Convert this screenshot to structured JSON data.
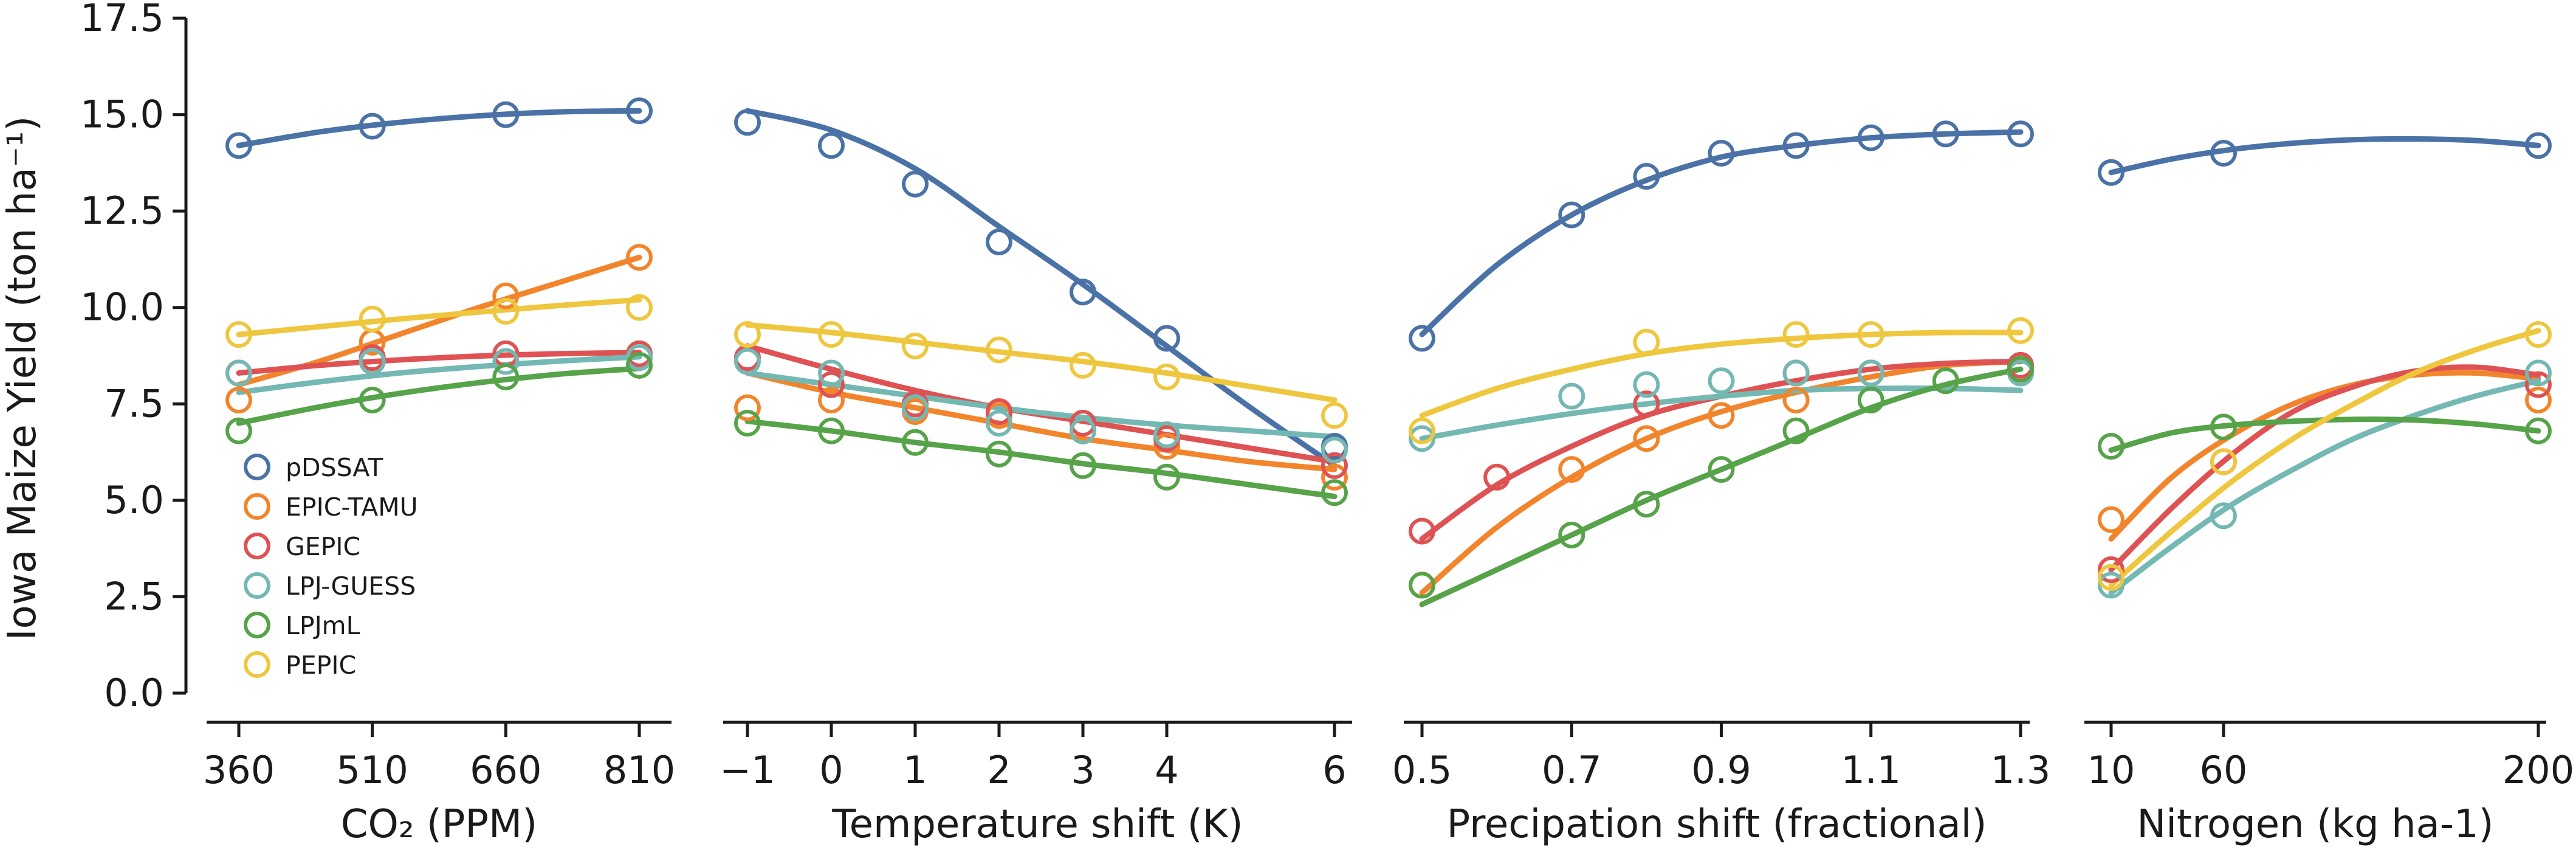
{
  "chart_data": {
    "type": "scatter",
    "ylabel": "Iowa Maize Yield (ton ha⁻¹)",
    "ylim": [
      0,
      17.5
    ],
    "y_ticks": [
      "0.0",
      "2.5",
      "5.0",
      "7.5",
      "10.0",
      "12.5",
      "15.0",
      "17.5"
    ],
    "grid": false,
    "legend_placement": "lower-left of first panel",
    "series": [
      {
        "name": "pDSSAT",
        "color": "#4a72a6"
      },
      {
        "name": "EPIC-TAMU",
        "color": "#f2852b"
      },
      {
        "name": "GEPIC",
        "color": "#df5253"
      },
      {
        "name": "LPJ-GUESS",
        "color": "#74b8b3"
      },
      {
        "name": "LPJmL",
        "color": "#56a349"
      },
      {
        "name": "PEPIC",
        "color": "#efc73f"
      }
    ],
    "panels": [
      {
        "xlabel": "CO₂ (PPM)",
        "xlim": [
          340,
          830
        ],
        "x_ticks": [
          360,
          510,
          660,
          810
        ],
        "x_tick_labels": [
          "360",
          "510",
          "660",
          "810"
        ],
        "x": [
          360,
          510,
          660,
          810
        ],
        "points": {
          "pDSSAT": [
            14.2,
            14.7,
            15.0,
            15.1
          ],
          "EPIC-TAMU": [
            7.6,
            9.1,
            10.3,
            11.3
          ],
          "GEPIC": [
            8.3,
            8.7,
            8.8,
            8.8
          ],
          "LPJ-GUESS": [
            8.3,
            8.6,
            8.6,
            8.7
          ],
          "LPJmL": [
            6.8,
            7.6,
            8.2,
            8.5
          ],
          "PEPIC": [
            9.3,
            9.7,
            9.9,
            10.0
          ]
        },
        "fit_x": [
          360,
          450,
          540,
          630,
          720,
          810
        ],
        "fits": {
          "pDSSAT": [
            14.2,
            14.55,
            14.8,
            14.97,
            15.07,
            15.1
          ],
          "EPIC-TAMU": [
            8.0,
            8.6,
            9.3,
            10.0,
            10.65,
            11.3
          ],
          "GEPIC": [
            8.3,
            8.5,
            8.64,
            8.74,
            8.8,
            8.83
          ],
          "LPJ-GUESS": [
            7.8,
            8.07,
            8.3,
            8.47,
            8.61,
            8.72
          ],
          "LPJmL": [
            7.0,
            7.42,
            7.77,
            8.05,
            8.27,
            8.42
          ],
          "PEPIC": [
            9.3,
            9.5,
            9.7,
            9.88,
            10.05,
            10.2
          ]
        }
      },
      {
        "xlabel": "Temperature shift (K)",
        "xlim": [
          -1.2,
          6.2
        ],
        "x_ticks": [
          -1,
          0,
          1,
          2,
          3,
          4,
          6
        ],
        "x_tick_labels": [
          "−1",
          "0",
          "1",
          "2",
          "3",
          "4",
          "6"
        ],
        "x": [
          -1,
          0,
          1,
          2,
          3,
          4,
          6
        ],
        "points": {
          "pDSSAT": [
            14.8,
            14.2,
            13.2,
            11.7,
            10.4,
            9.2,
            6.4
          ],
          "EPIC-TAMU": [
            7.4,
            7.6,
            7.3,
            7.2,
            6.8,
            6.4,
            5.6
          ],
          "GEPIC": [
            8.7,
            8.0,
            7.5,
            7.3,
            7.0,
            6.6,
            5.9
          ],
          "LPJ-GUESS": [
            8.6,
            8.3,
            7.4,
            7.0,
            6.8,
            6.7,
            6.3
          ],
          "LPJmL": [
            7.0,
            6.8,
            6.5,
            6.2,
            5.9,
            5.6,
            5.2
          ],
          "PEPIC": [
            9.3,
            9.3,
            9.0,
            8.9,
            8.5,
            8.2,
            7.2
          ]
        },
        "fit_x": [
          -1,
          0,
          1,
          2,
          3,
          4,
          5,
          6
        ],
        "fits": {
          "pDSSAT": [
            15.1,
            14.6,
            13.6,
            12.1,
            10.6,
            9.0,
            7.4,
            5.9
          ],
          "EPIC-TAMU": [
            8.3,
            7.8,
            7.4,
            7.0,
            6.6,
            6.3,
            6.0,
            5.8
          ],
          "GEPIC": [
            9.0,
            8.4,
            7.85,
            7.4,
            7.05,
            6.7,
            6.35,
            6.0
          ],
          "LPJ-GUESS": [
            8.3,
            8.0,
            7.7,
            7.4,
            7.15,
            6.95,
            6.8,
            6.65
          ],
          "LPJmL": [
            7.05,
            6.8,
            6.5,
            6.25,
            5.95,
            5.7,
            5.4,
            5.1
          ],
          "PEPIC": [
            9.55,
            9.35,
            9.1,
            8.85,
            8.6,
            8.3,
            7.95,
            7.6
          ]
        }
      },
      {
        "xlabel": "Precipation shift (fractional)",
        "xlim": [
          0.48,
          1.32
        ],
        "x_ticks": [
          0.5,
          0.7,
          0.9,
          1.1,
          1.3
        ],
        "x_tick_labels": [
          "0.5",
          "0.7",
          "0.9",
          "1.1",
          "1.3"
        ],
        "x": [
          0.5,
          0.6,
          0.7,
          0.8,
          0.9,
          1.0,
          1.1,
          1.2,
          1.3
        ],
        "points": {
          "pDSSAT": [
            9.2,
            null,
            12.4,
            13.4,
            14.0,
            14.2,
            14.4,
            14.5,
            14.5
          ],
          "EPIC-TAMU": [
            2.8,
            null,
            5.8,
            6.6,
            7.2,
            7.6,
            8.3,
            null,
            8.4
          ],
          "GEPIC": [
            4.2,
            5.6,
            null,
            7.5,
            null,
            8.3,
            8.3,
            null,
            8.5
          ],
          "LPJ-GUESS": [
            6.6,
            null,
            7.7,
            8.0,
            8.1,
            8.3,
            8.3,
            null,
            8.3
          ],
          "LPJmL": [
            2.8,
            null,
            4.1,
            4.9,
            5.8,
            6.8,
            7.6,
            8.1,
            8.4
          ],
          "PEPIC": [
            6.8,
            null,
            null,
            9.1,
            null,
            9.3,
            9.3,
            null,
            9.4
          ]
        },
        "fit_x": [
          0.5,
          0.6,
          0.7,
          0.8,
          0.9,
          1.0,
          1.1,
          1.2,
          1.3
        ],
        "fits": {
          "pDSSAT": [
            9.3,
            11.1,
            12.4,
            13.3,
            13.9,
            14.2,
            14.4,
            14.5,
            14.55
          ],
          "EPIC-TAMU": [
            2.6,
            4.3,
            5.6,
            6.6,
            7.3,
            7.8,
            8.2,
            8.5,
            8.6
          ],
          "GEPIC": [
            4.0,
            5.4,
            6.4,
            7.2,
            7.7,
            8.1,
            8.4,
            8.55,
            8.6
          ],
          "LPJ-GUESS": [
            6.6,
            6.95,
            7.25,
            7.5,
            7.7,
            7.85,
            7.9,
            7.9,
            7.85
          ],
          "LPJmL": [
            2.3,
            3.2,
            4.1,
            5.0,
            5.8,
            6.6,
            7.4,
            8.0,
            8.4
          ],
          "PEPIC": [
            7.2,
            7.9,
            8.4,
            8.8,
            9.05,
            9.2,
            9.3,
            9.35,
            9.35
          ]
        }
      },
      {
        "xlabel": "Nitrogen (kg ha-1)",
        "xlim": [
          0,
          210
        ],
        "x_ticks": [
          10,
          60,
          200
        ],
        "x_tick_labels": [
          "10",
          "60",
          "200"
        ],
        "x": [
          10,
          60,
          200
        ],
        "points": {
          "pDSSAT": [
            13.5,
            14.0,
            14.2
          ],
          "EPIC-TAMU": [
            4.5,
            6.0,
            7.6
          ],
          "GEPIC": [
            3.2,
            6.0,
            8.0
          ],
          "LPJ-GUESS": [
            2.8,
            4.6,
            8.3
          ],
          "LPJmL": [
            6.4,
            6.9,
            6.8
          ],
          "PEPIC": [
            3.0,
            6.0,
            9.3
          ]
        },
        "fit_x": [
          10,
          37,
          64,
          91,
          118,
          145,
          172,
          200
        ],
        "fits": {
          "pDSSAT": [
            13.5,
            13.85,
            14.1,
            14.26,
            14.35,
            14.37,
            14.33,
            14.2
          ],
          "EPIC-TAMU": [
            4.0,
            5.6,
            6.7,
            7.5,
            8.0,
            8.25,
            8.3,
            8.15
          ],
          "GEPIC": [
            3.2,
            4.8,
            6.2,
            7.3,
            7.95,
            8.35,
            8.45,
            8.25
          ],
          "LPJ-GUESS": [
            2.6,
            3.8,
            4.9,
            5.8,
            6.6,
            7.2,
            7.7,
            8.1
          ],
          "LPJmL": [
            6.3,
            6.75,
            6.95,
            7.05,
            7.1,
            7.08,
            6.98,
            6.8
          ],
          "PEPIC": [
            2.8,
            4.2,
            5.5,
            6.6,
            7.5,
            8.3,
            8.9,
            9.4
          ]
        }
      }
    ]
  }
}
